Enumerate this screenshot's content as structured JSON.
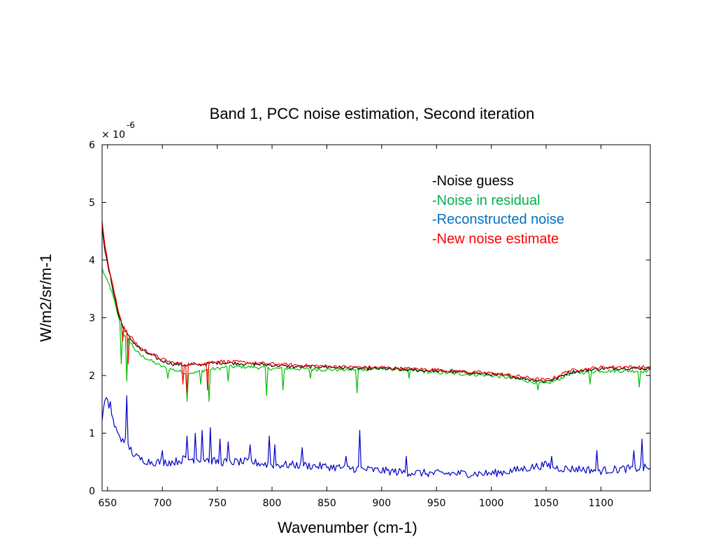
{
  "chart_data": {
    "type": "line",
    "title": "Band 1, PCC noise estimation, Second iteration",
    "xlabel": "Wavenumber  (cm-1)",
    "ylabel": "W/m2/sr/m-1",
    "y_scale_multiplier": "× 10",
    "y_scale_exponent": "-6",
    "xlim": [
      645,
      1145
    ],
    "ylim": [
      0,
      6
    ],
    "x_ticks": [
      650,
      700,
      750,
      800,
      850,
      900,
      950,
      1000,
      1050,
      1100
    ],
    "y_ticks": [
      0,
      1,
      2,
      3,
      4,
      5,
      6
    ],
    "grid": false,
    "legend_position": "top-right",
    "legend": [
      {
        "label": "-Noise guess",
        "color": "#000000"
      },
      {
        "label": "-Noise in residual",
        "color": "#00b050"
      },
      {
        "label": "-Reconstructed noise",
        "color": "#0070c0"
      },
      {
        "label": "-New noise estimate",
        "color": "#ff0000"
      }
    ],
    "series": [
      {
        "color": "#00c000",
        "width": 1.2,
        "x": [
          645,
          648,
          652,
          656,
          660,
          665,
          670,
          675,
          680,
          690,
          700,
          710,
          720,
          730,
          740,
          750,
          760,
          780,
          800,
          820,
          850,
          880,
          900,
          920,
          950,
          980,
          1000,
          1020,
          1040,
          1050,
          1060,
          1070,
          1080,
          1100,
          1120,
          1145
        ],
        "y": [
          3.85,
          3.7,
          3.55,
          3.3,
          3.0,
          2.7,
          2.6,
          2.45,
          2.35,
          2.25,
          2.15,
          2.1,
          2.05,
          2.05,
          2.1,
          2.12,
          2.15,
          2.15,
          2.12,
          2.12,
          2.1,
          2.1,
          2.12,
          2.1,
          2.05,
          2.02,
          2.0,
          1.95,
          1.88,
          1.85,
          1.92,
          2.02,
          2.05,
          2.08,
          2.08,
          2.08
        ],
        "spikes": [
          [
            662,
            2.2
          ],
          [
            668,
            1.9
          ],
          [
            705,
            1.95
          ],
          [
            722,
            1.55
          ],
          [
            735,
            1.85
          ],
          [
            742,
            1.55
          ],
          [
            760,
            1.9
          ],
          [
            795,
            1.65
          ],
          [
            810,
            1.75
          ],
          [
            835,
            1.95
          ],
          [
            878,
            1.7
          ],
          [
            925,
            1.95
          ],
          [
            1042,
            1.75
          ],
          [
            1090,
            1.85
          ],
          [
            1135,
            1.8
          ]
        ]
      },
      {
        "color": "#000000",
        "width": 1.2,
        "x": [
          645,
          648,
          652,
          656,
          660,
          665,
          670,
          675,
          680,
          690,
          700,
          710,
          720,
          730,
          740,
          750,
          760,
          780,
          800,
          820,
          850,
          880,
          900,
          920,
          950,
          980,
          1000,
          1020,
          1040,
          1050,
          1060,
          1070,
          1080,
          1100,
          1120,
          1145
        ],
        "y": [
          4.6,
          4.1,
          3.75,
          3.4,
          3.05,
          2.8,
          2.65,
          2.55,
          2.45,
          2.35,
          2.25,
          2.2,
          2.18,
          2.18,
          2.2,
          2.22,
          2.22,
          2.2,
          2.18,
          2.15,
          2.15,
          2.12,
          2.12,
          2.1,
          2.08,
          2.05,
          2.02,
          1.98,
          1.92,
          1.9,
          1.95,
          2.05,
          2.08,
          2.12,
          2.13,
          2.12
        ],
        "spikes": []
      },
      {
        "color": "#ff0000",
        "width": 1.2,
        "x": [
          645,
          648,
          652,
          656,
          660,
          665,
          670,
          675,
          680,
          690,
          700,
          710,
          720,
          730,
          740,
          750,
          760,
          780,
          800,
          820,
          850,
          880,
          900,
          920,
          950,
          980,
          1000,
          1020,
          1040,
          1050,
          1060,
          1070,
          1080,
          1100,
          1120,
          1145
        ],
        "y": [
          4.7,
          4.2,
          3.8,
          3.45,
          3.1,
          2.85,
          2.7,
          2.58,
          2.48,
          2.38,
          2.28,
          2.22,
          2.2,
          2.2,
          2.22,
          2.25,
          2.24,
          2.22,
          2.2,
          2.18,
          2.16,
          2.14,
          2.14,
          2.12,
          2.1,
          2.06,
          2.04,
          2.0,
          1.94,
          1.92,
          1.98,
          2.08,
          2.1,
          2.14,
          2.15,
          2.14
        ],
        "spikes": [
          [
            664,
            2.6
          ],
          [
            669,
            2.2
          ],
          [
            719,
            1.85
          ],
          [
            723,
            1.7
          ],
          [
            741,
            1.75
          ]
        ]
      },
      {
        "color": "#0000c8",
        "width": 1.2,
        "x": [
          645,
          648,
          652,
          656,
          660,
          665,
          670,
          675,
          680,
          690,
          700,
          710,
          720,
          730,
          740,
          750,
          760,
          780,
          800,
          820,
          850,
          880,
          900,
          920,
          950,
          980,
          1000,
          1020,
          1040,
          1050,
          1060,
          1070,
          1080,
          1100,
          1120,
          1145
        ],
        "y": [
          1.25,
          1.6,
          1.45,
          1.15,
          0.95,
          0.9,
          0.75,
          0.6,
          0.55,
          0.5,
          0.5,
          0.5,
          0.55,
          0.55,
          0.55,
          0.5,
          0.5,
          0.5,
          0.45,
          0.45,
          0.42,
          0.38,
          0.35,
          0.32,
          0.3,
          0.3,
          0.3,
          0.35,
          0.42,
          0.45,
          0.4,
          0.38,
          0.38,
          0.35,
          0.38,
          0.4
        ],
        "spikes": [
          [
            653,
            1.55
          ],
          [
            662,
            0.85
          ],
          [
            668,
            1.65
          ],
          [
            700,
            0.7
          ],
          [
            722,
            0.95
          ],
          [
            730,
            1.0
          ],
          [
            736,
            1.05
          ],
          [
            744,
            1.1
          ],
          [
            752,
            0.9
          ],
          [
            760,
            0.85
          ],
          [
            780,
            0.8
          ],
          [
            798,
            0.95
          ],
          [
            803,
            0.8
          ],
          [
            828,
            0.75
          ],
          [
            868,
            0.6
          ],
          [
            880,
            1.05
          ],
          [
            923,
            0.6
          ],
          [
            1055,
            0.6
          ],
          [
            1096,
            0.7
          ],
          [
            1130,
            0.7
          ],
          [
            1138,
            0.9
          ]
        ]
      }
    ]
  }
}
